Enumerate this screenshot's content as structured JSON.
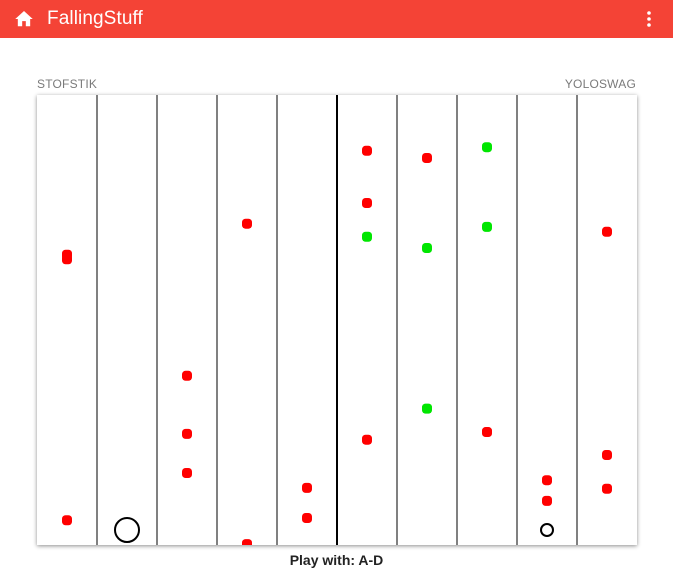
{
  "appbar": {
    "title": "FallingStuff",
    "home_icon": "home-icon",
    "menu_icon": "more-vert-icon",
    "background": "#f44336"
  },
  "players": {
    "left_name": "STOFSTIK",
    "right_name": "YOLOSWAG"
  },
  "footer": {
    "hint": "Play with: A-D"
  },
  "game": {
    "lanes": 10,
    "divider_after_lane": 5,
    "colors": {
      "bad": "#ff0000",
      "good": "#00e600",
      "player": "#000000"
    },
    "falling_items": [
      {
        "lane": 0,
        "depth": 0.355,
        "kind": "bad"
      },
      {
        "lane": 0,
        "depth": 0.365,
        "kind": "bad"
      },
      {
        "lane": 0,
        "depth": 0.945,
        "kind": "bad"
      },
      {
        "lane": 2,
        "depth": 0.624,
        "kind": "bad"
      },
      {
        "lane": 2,
        "depth": 0.753,
        "kind": "bad"
      },
      {
        "lane": 2,
        "depth": 0.84,
        "kind": "bad"
      },
      {
        "lane": 3,
        "depth": 0.286,
        "kind": "bad"
      },
      {
        "lane": 3,
        "depth": 0.998,
        "kind": "bad"
      },
      {
        "lane": 4,
        "depth": 0.873,
        "kind": "bad"
      },
      {
        "lane": 4,
        "depth": 0.94,
        "kind": "bad"
      },
      {
        "lane": 5,
        "depth": 0.124,
        "kind": "bad"
      },
      {
        "lane": 5,
        "depth": 0.24,
        "kind": "bad"
      },
      {
        "lane": 5,
        "depth": 0.315,
        "kind": "good"
      },
      {
        "lane": 5,
        "depth": 0.766,
        "kind": "bad"
      },
      {
        "lane": 6,
        "depth": 0.14,
        "kind": "bad"
      },
      {
        "lane": 6,
        "depth": 0.34,
        "kind": "good"
      },
      {
        "lane": 6,
        "depth": 0.697,
        "kind": "good"
      },
      {
        "lane": 7,
        "depth": 0.116,
        "kind": "good"
      },
      {
        "lane": 7,
        "depth": 0.293,
        "kind": "good"
      },
      {
        "lane": 7,
        "depth": 0.749,
        "kind": "bad"
      },
      {
        "lane": 8,
        "depth": 0.856,
        "kind": "bad"
      },
      {
        "lane": 8,
        "depth": 0.902,
        "kind": "bad"
      },
      {
        "lane": 9,
        "depth": 0.304,
        "kind": "bad"
      },
      {
        "lane": 9,
        "depth": 0.8,
        "kind": "bad"
      },
      {
        "lane": 9,
        "depth": 0.875,
        "kind": "bad"
      }
    ],
    "player_pieces": [
      {
        "owner": "STOFSTIK",
        "lane": 1,
        "size": "large"
      },
      {
        "owner": "YOLOSWAG",
        "lane": 8,
        "size": "small"
      }
    ]
  }
}
